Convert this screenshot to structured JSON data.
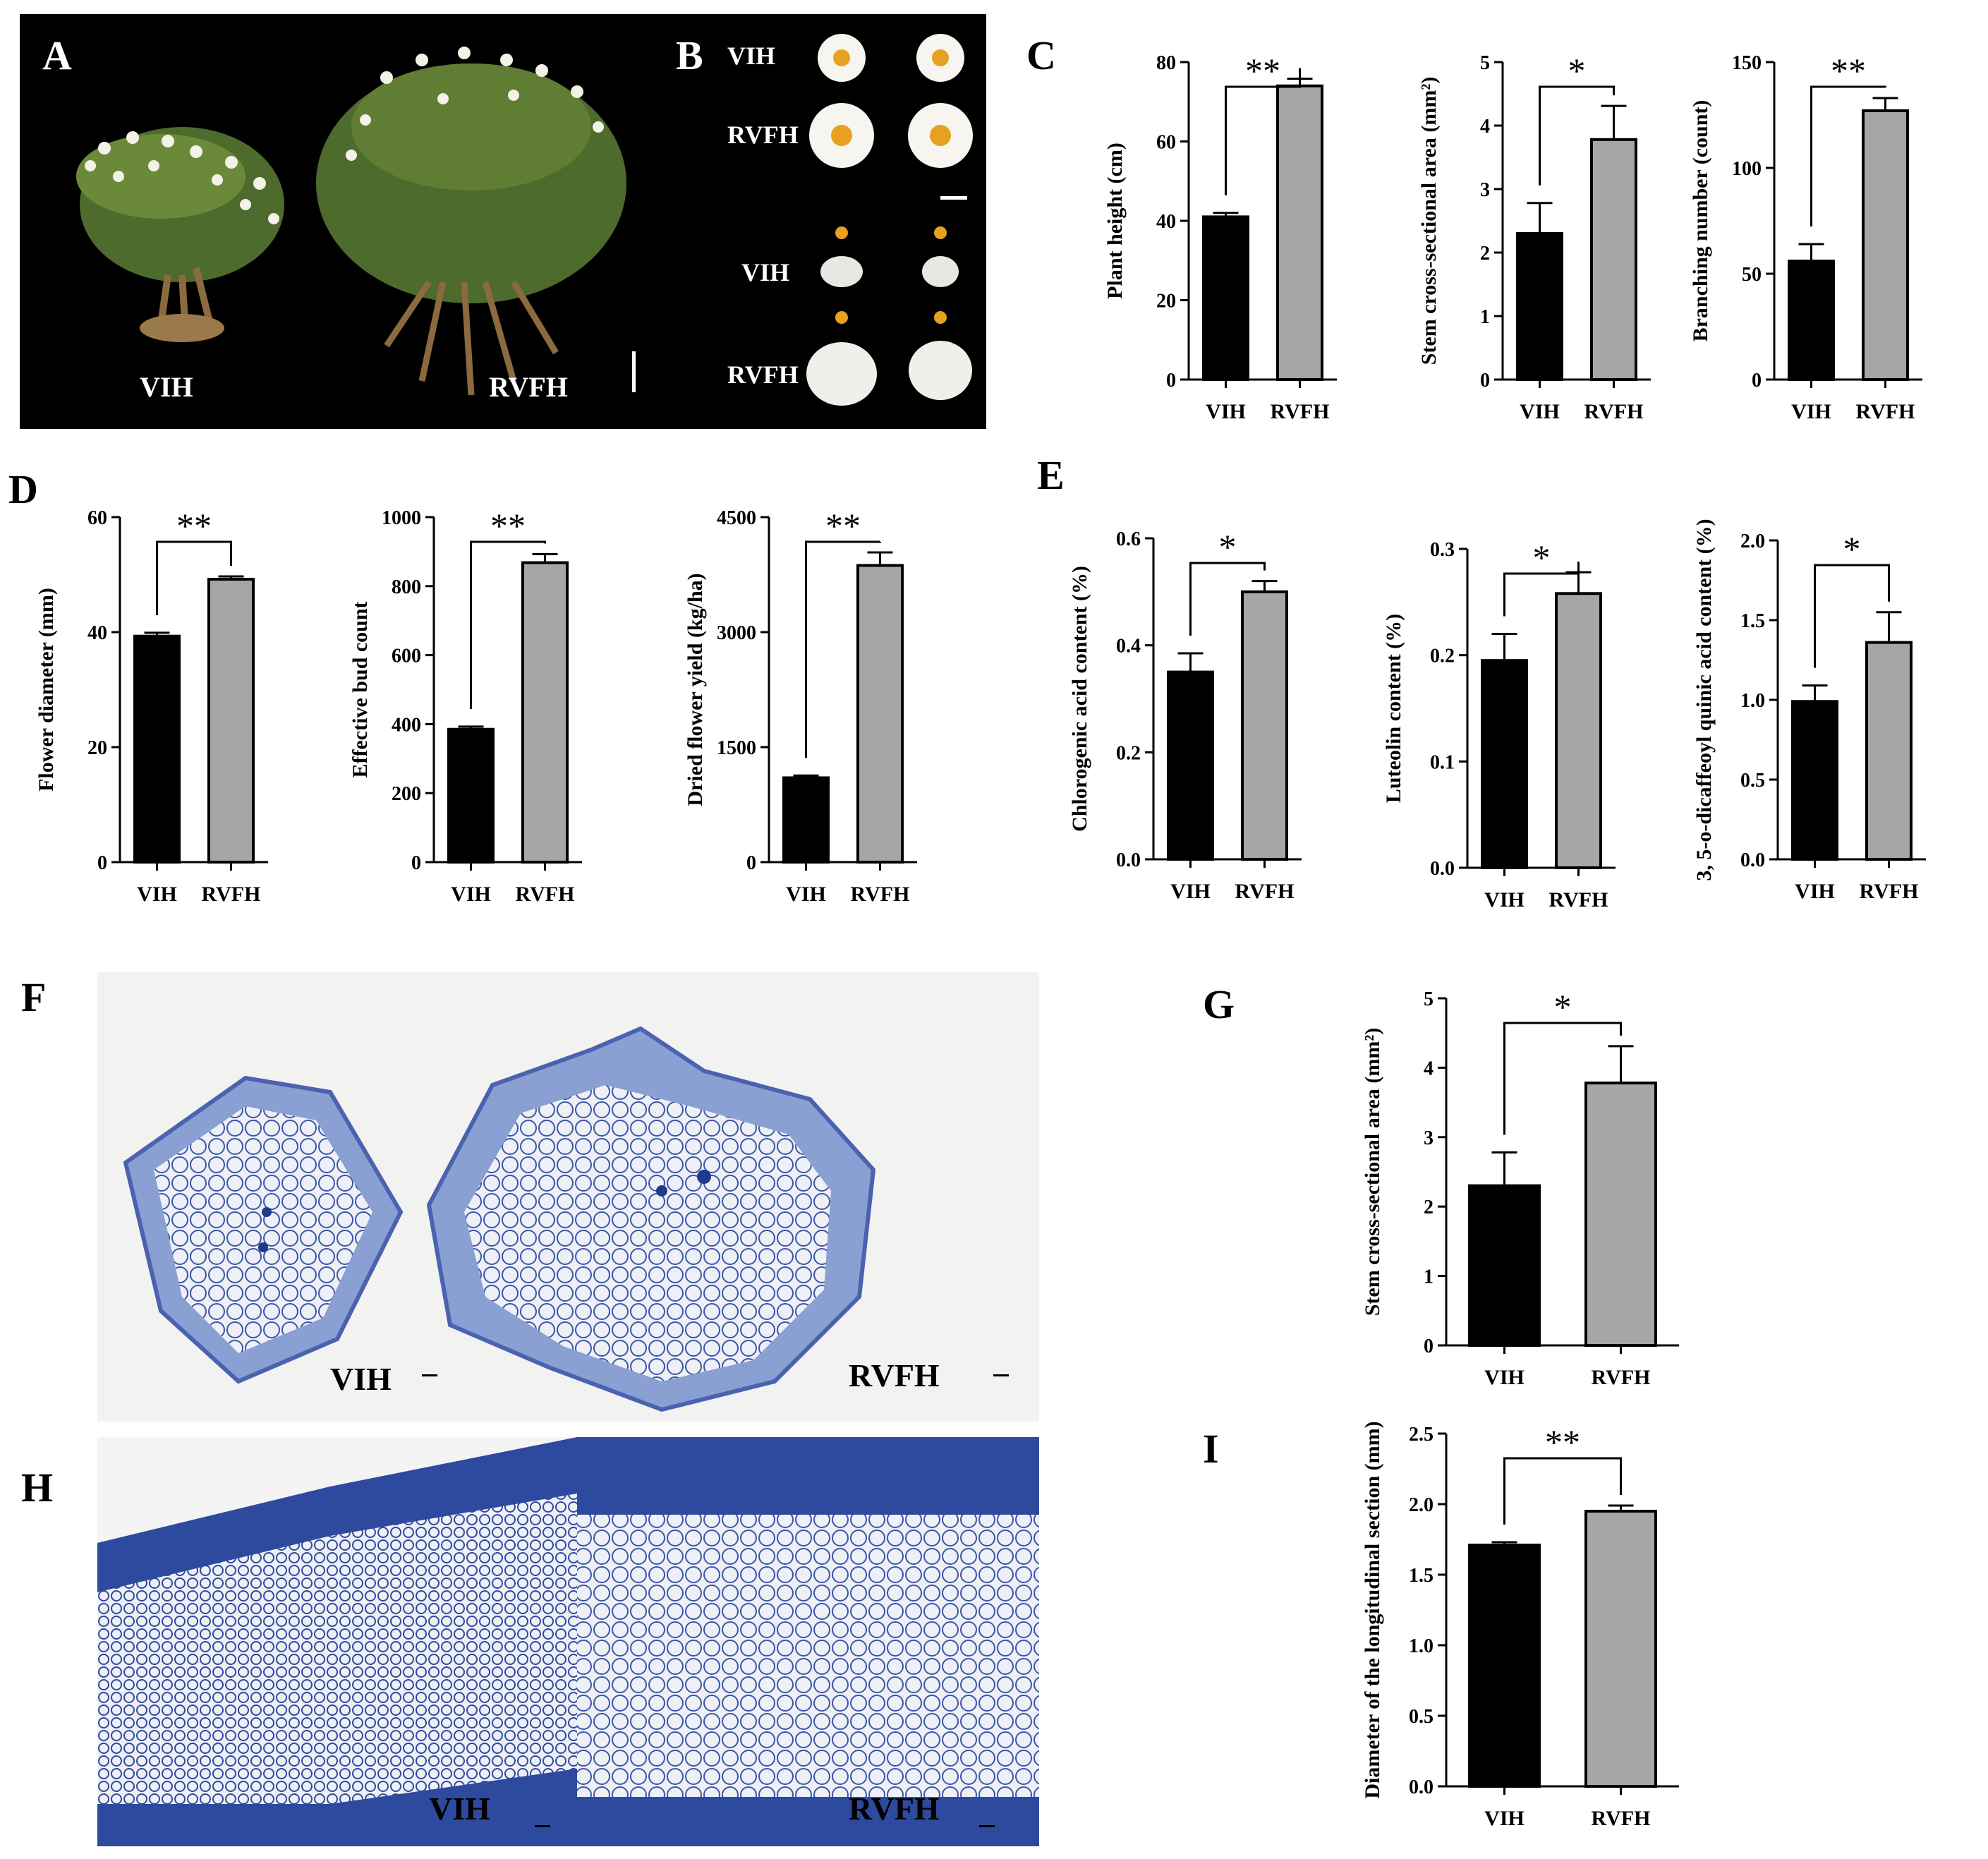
{
  "panels": {
    "A": {
      "letter": "A",
      "labels": [
        "VIH",
        "RVFH"
      ]
    },
    "B": {
      "letter": "B",
      "labels": [
        "VIH",
        "RVFH",
        "VIH",
        "RVFH"
      ]
    },
    "C": {
      "letter": "C"
    },
    "D": {
      "letter": "D"
    },
    "E": {
      "letter": "E"
    },
    "F": {
      "letter": "F",
      "labels": [
        "VIH",
        "RVFH"
      ]
    },
    "G": {
      "letter": "G"
    },
    "H": {
      "letter": "H",
      "labels": [
        "VIH",
        "RVFH"
      ]
    },
    "I": {
      "letter": "I"
    }
  },
  "colors": {
    "vih_bar": "#000000",
    "rvfh_bar": "#a6a6a6",
    "photo_background": "#000000",
    "stain_light": "#eef0f6",
    "stain_dark": "#1f3a8c"
  },
  "chart_data": [
    {
      "id": "C1",
      "type": "bar",
      "categories": [
        "VIH",
        "RVFH"
      ],
      "values": [
        41,
        74
      ],
      "errors": [
        1,
        1.8
      ],
      "ylabel": "Plant height (cm)",
      "ylim": [
        0,
        80
      ],
      "yticks": [
        "0",
        "20",
        "40",
        "60",
        "80"
      ],
      "significance": "**"
    },
    {
      "id": "C2",
      "type": "bar",
      "categories": [
        "VIH",
        "RVFH"
      ],
      "values": [
        2.3,
        3.78
      ],
      "errors": [
        0.48,
        0.53
      ],
      "ylabel": "Stem cross-sectional area (mm²)",
      "ylim": [
        0,
        5
      ],
      "yticks": [
        "0",
        "1",
        "2",
        "3",
        "4",
        "5"
      ],
      "significance": "*"
    },
    {
      "id": "C3",
      "type": "bar",
      "categories": [
        "VIH",
        "RVFH"
      ],
      "values": [
        56,
        127
      ],
      "errors": [
        8,
        6
      ],
      "ylabel": "Branching number (count)",
      "ylim": [
        0,
        150
      ],
      "yticks": [
        "0",
        "50",
        "100",
        "150"
      ],
      "significance": "**"
    },
    {
      "id": "D1",
      "type": "bar",
      "categories": [
        "VIH",
        "RVFH"
      ],
      "values": [
        39.3,
        49.2
      ],
      "errors": [
        0.6,
        0.5
      ],
      "ylabel": "Flower diameter (mm)",
      "ylim": [
        0,
        60
      ],
      "yticks": [
        "0",
        "20",
        "40",
        "60"
      ],
      "significance": "**"
    },
    {
      "id": "D2",
      "type": "bar",
      "categories": [
        "VIH",
        "RVFH"
      ],
      "values": [
        385,
        868
      ],
      "errors": [
        8,
        25
      ],
      "ylabel": "Effective bud count",
      "ylim": [
        0,
        1000
      ],
      "yticks": [
        "0",
        "200",
        "400",
        "600",
        "800",
        "1000"
      ],
      "significance": "**"
    },
    {
      "id": "D3",
      "type": "bar",
      "categories": [
        "VIH",
        "RVFH"
      ],
      "values": [
        1100,
        3870
      ],
      "errors": [
        30,
        170
      ],
      "ylabel": "Dried flower yield (kg/ha)",
      "ylim": [
        0,
        4500
      ],
      "yticks": [
        "0",
        "1500",
        "3000",
        "4500"
      ],
      "significance": "**"
    },
    {
      "id": "E1",
      "type": "bar",
      "categories": [
        "VIH",
        "RVFH"
      ],
      "values": [
        0.35,
        0.5
      ],
      "errors": [
        0.035,
        0.02
      ],
      "ylabel": "Chlorogenic acid content (%)",
      "ylim": [
        0,
        0.6
      ],
      "yticks": [
        "0.0",
        "0.2",
        "0.4",
        "0.6"
      ],
      "significance": "*"
    },
    {
      "id": "E2",
      "type": "bar",
      "categories": [
        "VIH",
        "RVFH"
      ],
      "values": [
        0.195,
        0.258
      ],
      "errors": [
        0.025,
        0.02
      ],
      "ylabel": "Luteolin content (%)",
      "ylim": [
        0,
        0.3
      ],
      "yticks": [
        "0.0",
        "0.1",
        "0.2",
        "0.3"
      ],
      "significance": "*"
    },
    {
      "id": "E3",
      "type": "bar",
      "categories": [
        "VIH",
        "RVFH"
      ],
      "values": [
        0.99,
        1.36
      ],
      "errors": [
        0.1,
        0.19
      ],
      "ylabel": "3, 5-o-dicaffeoyl quinic acid content (%)",
      "ylim": [
        0,
        2.0
      ],
      "yticks": [
        "0.0",
        "0.5",
        "1.0",
        "1.5",
        "2.0"
      ],
      "significance": "*"
    },
    {
      "id": "G",
      "type": "bar",
      "categories": [
        "VIH",
        "RVFH"
      ],
      "values": [
        2.3,
        3.78
      ],
      "errors": [
        0.48,
        0.53
      ],
      "ylabel": "Stem cross-sectional area (mm²)",
      "ylim": [
        0,
        5
      ],
      "yticks": [
        "0",
        "1",
        "2",
        "3",
        "4",
        "5"
      ],
      "significance": "*"
    },
    {
      "id": "I",
      "type": "bar",
      "categories": [
        "VIH",
        "RVFH"
      ],
      "values": [
        1.71,
        1.95
      ],
      "errors": [
        0.02,
        0.04
      ],
      "ylabel": "Diameter of the longitudinal section (mm)",
      "ylim": [
        0,
        2.5
      ],
      "yticks": [
        "0.0",
        "0.5",
        "1.0",
        "1.5",
        "2.0",
        "2.5"
      ],
      "significance": "**"
    }
  ]
}
